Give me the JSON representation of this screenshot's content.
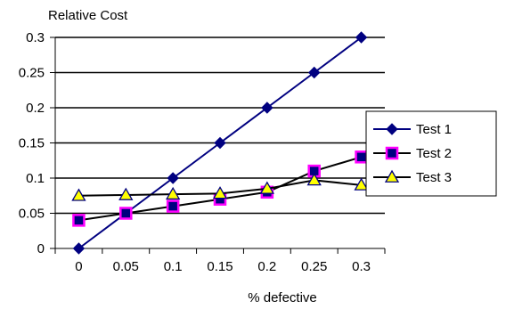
{
  "chart_data": {
    "type": "line",
    "title": "",
    "ylabel": "Relative Cost",
    "xlabel": "% defective",
    "categories": [
      "0",
      "0.05",
      "0.1",
      "0.15",
      "0.2",
      "0.25",
      "0.3"
    ],
    "ylim": [
      0,
      0.3
    ],
    "yticks": [
      0,
      0.05,
      0.1,
      0.15,
      0.2,
      0.25,
      0.3
    ],
    "ytick_labels": [
      "0",
      "0.05",
      "0.1",
      "0.15",
      "0.2",
      "0.25",
      "0.3"
    ],
    "grid": "horizontal",
    "legend_position": "right",
    "series": [
      {
        "name": "Test 1",
        "values": [
          0.0,
          0.05,
          0.1,
          0.15,
          0.2,
          0.25,
          0.3
        ],
        "line_color": "#000080",
        "marker": "diamond",
        "marker_fill": "#000080",
        "marker_stroke": "#000080"
      },
      {
        "name": "Test 2",
        "values": [
          0.04,
          0.05,
          0.06,
          0.07,
          0.08,
          0.11,
          0.13
        ],
        "line_color": "#000000",
        "marker": "square",
        "marker_fill": "#000080",
        "marker_stroke": "#ff00ff"
      },
      {
        "name": "Test 3",
        "values": [
          0.075,
          0.076,
          0.077,
          0.078,
          0.085,
          0.097,
          0.09
        ],
        "line_color": "#000000",
        "marker": "triangle",
        "marker_fill": "#ffff00",
        "marker_stroke": "#000080"
      }
    ]
  }
}
